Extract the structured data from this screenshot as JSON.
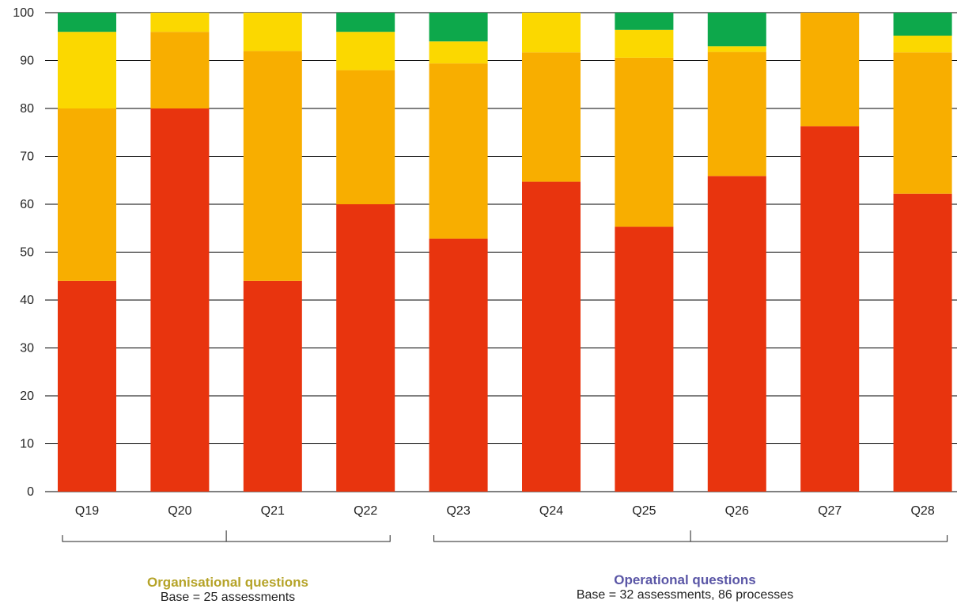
{
  "chart_data": {
    "type": "bar",
    "stacked": true,
    "categories": [
      "Q19",
      "Q20",
      "Q21",
      "Q22",
      "Q23",
      "Q24",
      "Q25",
      "Q26",
      "Q27",
      "Q28"
    ],
    "series": [
      {
        "color": "#e8340e",
        "values": [
          44,
          80,
          44,
          60,
          52.8,
          64.7,
          55.3,
          65.9,
          76.3,
          62.2
        ]
      },
      {
        "color": "#f8ae00",
        "values": [
          36,
          16,
          48,
          28,
          36.6,
          27,
          35.3,
          25.9,
          23.7,
          29.5
        ]
      },
      {
        "color": "#fbd800",
        "values": [
          16,
          4,
          8,
          8,
          4.6,
          8.3,
          5.8,
          1.2,
          0,
          3.5
        ]
      },
      {
        "color": "#0da84b",
        "values": [
          4,
          0,
          0,
          4,
          6,
          0,
          3.6,
          7,
          0,
          4.8
        ]
      }
    ],
    "ylim": [
      0,
      100
    ],
    "yticks": [
      "0",
      "10",
      "20",
      "30",
      "40",
      "50",
      "60",
      "70",
      "80",
      "90",
      "100"
    ],
    "grid": true,
    "groups": [
      {
        "title": "Organisational questions",
        "subtitle": "Base = 25 assessments",
        "from": "Q19",
        "to": "Q22",
        "color": "#b5a328"
      },
      {
        "title": "Operational questions",
        "subtitle": "Base = 32 assessments, 86 processes",
        "from": "Q23",
        "to": "Q28",
        "color": "#5a56a6"
      }
    ]
  }
}
